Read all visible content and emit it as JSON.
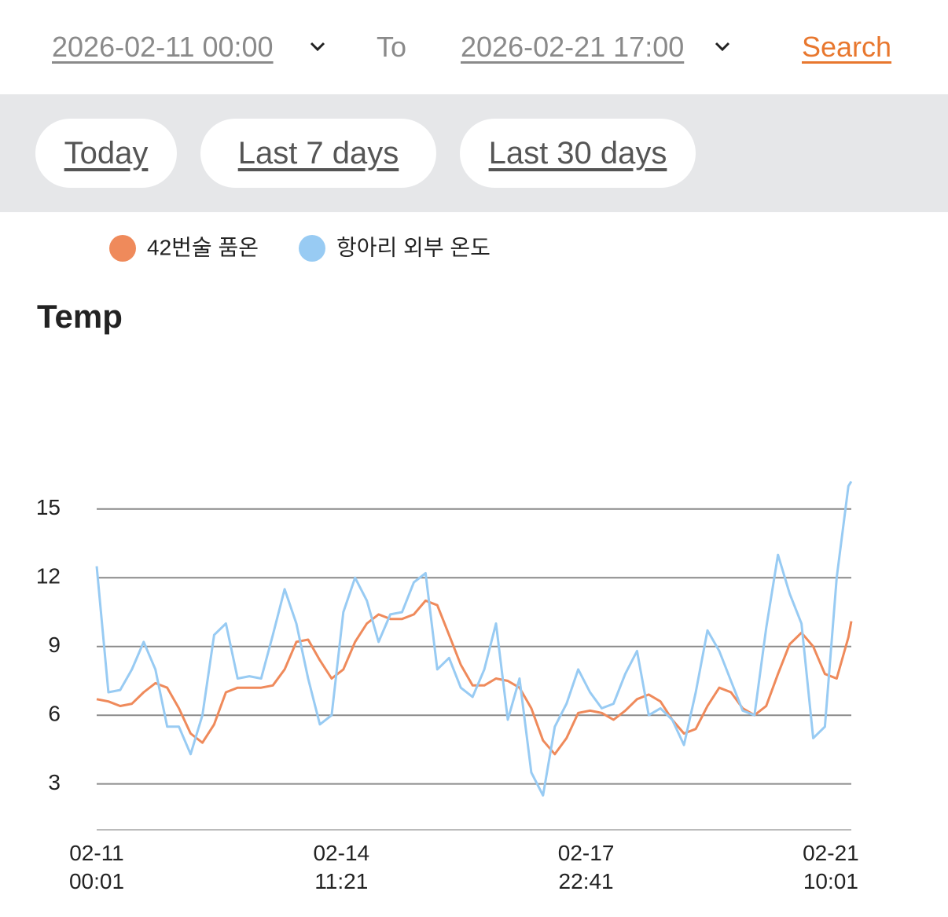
{
  "header": {
    "from": "2026-02-11 00:00",
    "to_label": "To",
    "to": "2026-02-21 17:00",
    "search": "Search"
  },
  "presets": [
    "Today",
    "Last 7 days",
    "Last 30 days"
  ],
  "chart_data": {
    "type": "line",
    "title": "Temp",
    "x": [
      "02-11 00:01",
      "02-11 04:01",
      "02-11 08:01",
      "02-11 12:01",
      "02-11 16:01",
      "02-11 20:01",
      "02-12 00:01",
      "02-12 04:01",
      "02-12 08:01",
      "02-12 12:01",
      "02-12 16:01",
      "02-12 20:01",
      "02-13 00:01",
      "02-13 04:01",
      "02-13 08:01",
      "02-13 12:01",
      "02-13 16:01",
      "02-13 20:01",
      "02-14 00:01",
      "02-14 04:01",
      "02-14 08:01",
      "02-14 12:01",
      "02-14 16:01",
      "02-14 20:01",
      "02-15 00:01",
      "02-15 04:01",
      "02-15 08:01",
      "02-15 12:01",
      "02-15 16:01",
      "02-15 20:01",
      "02-16 00:01",
      "02-16 04:01",
      "02-16 08:01",
      "02-16 12:01",
      "02-16 16:01",
      "02-16 20:01",
      "02-17 00:01",
      "02-17 04:01",
      "02-17 08:01",
      "02-17 12:01",
      "02-17 16:01",
      "02-17 20:01",
      "02-18 00:01",
      "02-18 04:01",
      "02-18 08:01",
      "02-18 12:01",
      "02-18 16:01",
      "02-18 20:01",
      "02-19 00:01",
      "02-19 04:01",
      "02-19 08:01",
      "02-19 12:01",
      "02-19 16:01",
      "02-19 20:01",
      "02-20 00:01",
      "02-20 04:01",
      "02-20 08:01",
      "02-20 12:01",
      "02-20 16:01",
      "02-20 20:01",
      "02-21 00:01",
      "02-21 04:01",
      "02-21 08:01",
      "02-21 12:01",
      "02-21 16:01",
      "02-21 17:00"
    ],
    "series": [
      {
        "name": "42번술 품온",
        "color": "#ef8a5b",
        "values": [
          6.7,
          6.6,
          6.4,
          6.5,
          7.0,
          7.4,
          7.2,
          6.3,
          5.2,
          4.8,
          5.6,
          7.0,
          7.2,
          7.2,
          7.2,
          7.3,
          8.0,
          9.2,
          9.3,
          8.4,
          7.6,
          8.0,
          9.2,
          10.0,
          10.4,
          10.2,
          10.2,
          10.4,
          11.0,
          10.8,
          9.5,
          8.2,
          7.3,
          7.3,
          7.6,
          7.5,
          7.2,
          6.3,
          4.9,
          4.3,
          5.0,
          6.1,
          6.2,
          6.1,
          5.8,
          6.2,
          6.7,
          6.9,
          6.6,
          5.8,
          5.2,
          5.4,
          6.4,
          7.2,
          7.0,
          6.3,
          6.0,
          6.4,
          7.8,
          9.1,
          9.6,
          9.0,
          7.8,
          7.6,
          9.4,
          10.1
        ]
      },
      {
        "name": "항아리 외부 온도",
        "color": "#98cbf3",
        "values": [
          12.5,
          7.0,
          7.1,
          8.0,
          9.2,
          8.0,
          5.5,
          5.5,
          4.3,
          6.0,
          9.5,
          10.0,
          7.6,
          7.7,
          7.6,
          9.5,
          11.5,
          10.0,
          7.6,
          5.6,
          6.0,
          10.5,
          12.0,
          11.0,
          9.2,
          10.4,
          10.5,
          11.8,
          12.2,
          8.0,
          8.5,
          7.2,
          6.8,
          8.0,
          10.0,
          5.8,
          7.6,
          3.5,
          2.5,
          5.5,
          6.5,
          8.0,
          7.0,
          6.3,
          6.5,
          7.8,
          8.8,
          6.0,
          6.3,
          5.8,
          4.7,
          7.0,
          9.7,
          8.8,
          7.5,
          6.2,
          6.0,
          9.8,
          13.0,
          11.3,
          10.0,
          5.0,
          5.5,
          12.0,
          16.0,
          16.2
        ]
      }
    ],
    "xlim": [
      "02-11 00:01",
      "02-21 17:00"
    ],
    "xticks": [
      "02-11 00:01",
      "02-14 11:21",
      "02-17 22:41",
      "02-21 10:01"
    ],
    "ylim": [
      1,
      16.5
    ],
    "yticks": [
      3,
      6,
      9,
      12,
      15
    ],
    "grid": true
  }
}
